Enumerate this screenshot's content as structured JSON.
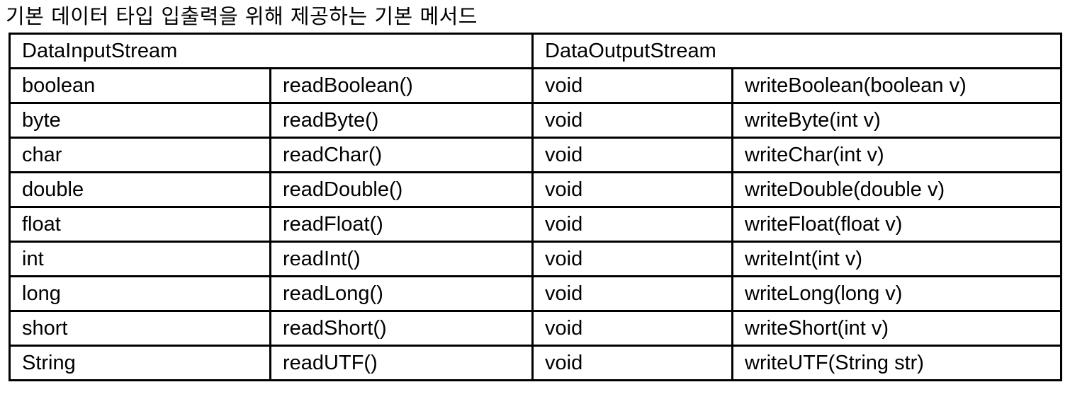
{
  "caption": "기본 데이터 타입 입출력을 위해 제공하는 기본 메서드",
  "table": {
    "headers": [
      "DataInputStream",
      "DataOutputStream"
    ],
    "rows": [
      [
        "boolean",
        "readBoolean()",
        "void",
        "writeBoolean(boolean v)"
      ],
      [
        "byte",
        "readByte()",
        "void",
        "writeByte(int v)"
      ],
      [
        "char",
        "readChar()",
        "void",
        "writeChar(int v)"
      ],
      [
        "double",
        "readDouble()",
        "void",
        "writeDouble(double v)"
      ],
      [
        "float",
        "readFloat()",
        "void",
        "writeFloat(float v)"
      ],
      [
        "int",
        "readInt()",
        "void",
        "writeInt(int v)"
      ],
      [
        "long",
        "readLong()",
        "void",
        "writeLong(long v)"
      ],
      [
        "short",
        "readShort()",
        "void",
        "writeShort(int v)"
      ],
      [
        "String",
        "readUTF()",
        "void",
        "writeUTF(String str)"
      ]
    ]
  }
}
